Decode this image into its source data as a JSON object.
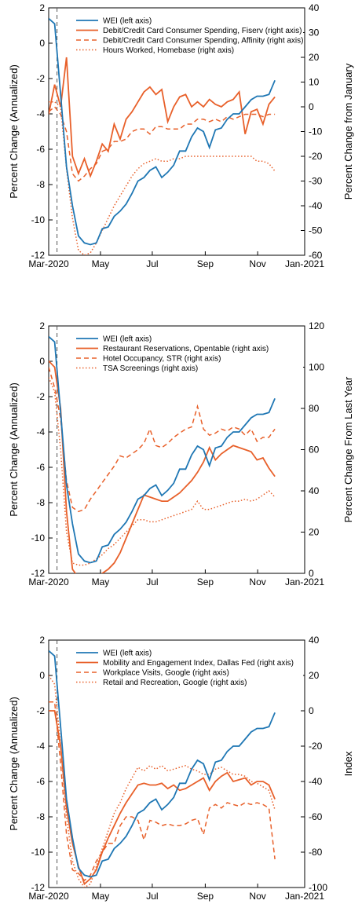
{
  "chart_data": [
    {
      "type": "line",
      "x_ticks": [
        "Mar-2020",
        "May",
        "Jul",
        "Sep",
        "Nov",
        "Jan-2021"
      ],
      "ylabel_left": "Percent Change (Annualized)",
      "ylabel_right": "Percent Change from January",
      "ylim_left": [
        -12,
        2
      ],
      "ylim_right": [
        -60,
        40
      ],
      "yticks_left": [
        -12,
        -10,
        -8,
        -6,
        -4,
        -2,
        0,
        2
      ],
      "yticks_right": [
        -60,
        -50,
        -40,
        -30,
        -20,
        -10,
        0,
        10,
        20,
        30,
        40
      ],
      "reference_line_week": 1.4,
      "legend_position": "top-right",
      "series": [
        {
          "name": "WEI (left axis)",
          "axis": "left",
          "color": "#1f77b4",
          "style": "solid",
          "values": [
            1.4,
            1.1,
            -2.9,
            -7.0,
            -9.2,
            -10.9,
            -11.3,
            -11.4,
            -11.3,
            -10.5,
            -10.4,
            -9.8,
            -9.5,
            -9.1,
            -8.5,
            -7.8,
            -7.6,
            -7.2,
            -7.0,
            -7.6,
            -7.3,
            -6.9,
            -6.1,
            -6.1,
            -5.3,
            -4.8,
            -5.0,
            -5.9,
            -4.9,
            -4.8,
            -4.3,
            -4.0,
            -4.0,
            -3.6,
            -3.2,
            -3.0,
            -3.0,
            -2.9,
            -2.1
          ]
        },
        {
          "name": "Debit/Credit Card Consumer Spending, Fiserv (right axis)",
          "axis": "right",
          "color": "#e8602a",
          "style": "solid",
          "values": [
            -3,
            9,
            0,
            20,
            -20,
            -27,
            -21,
            -28,
            -22,
            -15,
            -18,
            -7,
            -13,
            -5,
            -2,
            2,
            6,
            8,
            5,
            7,
            -6,
            0,
            4,
            5,
            0,
            2,
            0,
            3,
            1,
            0,
            2,
            3,
            6,
            -11,
            -2,
            -1,
            -7,
            1,
            4
          ]
        },
        {
          "name": "Debit/Credit Card Consumer Spending, Affinity (right axis)",
          "axis": "right",
          "color": "#e8602a",
          "style": "dashed",
          "values": [
            -2,
            0,
            -3,
            -10,
            -27,
            -30,
            -28,
            -25,
            -23,
            -18,
            -17,
            -14,
            -14,
            -13,
            -10,
            -9,
            -9,
            -11,
            -8,
            -8,
            -9,
            -9,
            -9,
            -7,
            -7,
            -5,
            -5,
            -6,
            -5,
            -6,
            -4,
            -5,
            -4,
            -3,
            -3,
            -3,
            -4,
            -3,
            -3
          ]
        },
        {
          "name": "Hours Worked, Homebase (right axis)",
          "axis": "right",
          "color": "#e8602a",
          "style": "dotted",
          "values": [
            2,
            2,
            0,
            -25,
            -45,
            -58,
            -60,
            -59,
            -55,
            -50,
            -45,
            -40,
            -36,
            -32,
            -28,
            -25,
            -23,
            -22,
            -21,
            -22,
            -22,
            -21,
            -21,
            -20,
            -20,
            -20,
            -20,
            -20,
            -20,
            -20,
            -20,
            -20,
            -20,
            -20,
            -20,
            -22,
            -22,
            -23,
            -26
          ]
        }
      ]
    },
    {
      "type": "line",
      "x_ticks": [
        "Mar-2020",
        "May",
        "Jul",
        "Sep",
        "Nov",
        "Jan-2021"
      ],
      "ylabel_left": "Percent Change (Annualized)",
      "ylabel_right": "Percent Change From Last Year",
      "ylim_left": [
        -12,
        2
      ],
      "ylim_right": [
        0,
        120
      ],
      "yticks_left": [
        -12,
        -10,
        -8,
        -6,
        -4,
        -2,
        0,
        2
      ],
      "yticks_right": [
        0,
        20,
        40,
        60,
        80,
        100,
        120
      ],
      "reference_line_week": 1.4,
      "legend_position": "top-right",
      "series": [
        {
          "name": "WEI (left axis)",
          "axis": "left",
          "color": "#1f77b4",
          "style": "solid",
          "values": [
            1.4,
            1.1,
            -2.9,
            -7.0,
            -9.2,
            -10.9,
            -11.3,
            -11.4,
            -11.3,
            -10.5,
            -10.4,
            -9.8,
            -9.5,
            -9.1,
            -8.5,
            -7.8,
            -7.6,
            -7.2,
            -7.0,
            -7.6,
            -7.3,
            -6.9,
            -6.1,
            -6.1,
            -5.3,
            -4.8,
            -5.0,
            -5.9,
            -4.9,
            -4.8,
            -4.3,
            -4.0,
            -4.0,
            -3.6,
            -3.2,
            -3.0,
            -3.0,
            -2.9,
            -2.1
          ]
        },
        {
          "name": "Restaurant Reservations, Opentable (right axis)",
          "axis": "right",
          "color": "#e8602a",
          "style": "solid",
          "values": [
            103,
            100,
            80,
            30,
            2,
            -2,
            -5,
            -5,
            -2,
            0,
            2,
            5,
            10,
            17,
            24,
            31,
            38,
            37,
            36,
            35,
            35,
            37,
            39,
            42,
            45,
            49,
            54,
            61,
            55,
            58,
            60,
            62,
            61,
            60,
            59,
            55,
            56,
            51,
            47
          ]
        },
        {
          "name": "Hotel Occupancy, STR (right axis)",
          "axis": "right",
          "color": "#e8602a",
          "style": "dashed",
          "values": [
            100,
            90,
            75,
            45,
            32,
            30,
            31,
            36,
            40,
            44,
            48,
            52,
            57,
            56,
            58,
            60,
            63,
            70,
            62,
            61,
            63,
            66,
            68,
            70,
            71,
            81,
            70,
            67,
            68,
            70,
            69,
            71,
            70,
            67,
            70,
            64,
            66,
            66,
            70
          ]
        },
        {
          "name": "TSA Screenings (right axis)",
          "axis": "right",
          "color": "#e8602a",
          "style": "dotted",
          "values": [
            95,
            88,
            60,
            20,
            5,
            4,
            4,
            5,
            7,
            9,
            12,
            14,
            17,
            20,
            23,
            26,
            26,
            25,
            25,
            26,
            27,
            28,
            29,
            30,
            31,
            35,
            31,
            31,
            32,
            33,
            34,
            35,
            35,
            36,
            35,
            36,
            38,
            40,
            37
          ]
        }
      ]
    },
    {
      "type": "line",
      "x_ticks": [
        "Mar-2020",
        "May",
        "Jul",
        "Sep",
        "Nov",
        "Jan-2021"
      ],
      "ylabel_left": "Percent Change (Annualized)",
      "ylabel_right": "Index",
      "ylim_left": [
        -12,
        2
      ],
      "ylim_right": [
        -100,
        40
      ],
      "yticks_left": [
        -12,
        -10,
        -8,
        -6,
        -4,
        -2,
        0,
        2
      ],
      "yticks_right": [
        -100,
        -80,
        -60,
        -40,
        -20,
        0,
        20,
        40
      ],
      "reference_line_week": 1.4,
      "legend_position": "top-right",
      "series": [
        {
          "name": "WEI (left axis)",
          "axis": "left",
          "color": "#1f77b4",
          "style": "solid",
          "values": [
            1.4,
            1.1,
            -2.9,
            -7.0,
            -9.2,
            -10.9,
            -11.3,
            -11.4,
            -11.3,
            -10.5,
            -10.4,
            -9.8,
            -9.5,
            -9.1,
            -8.5,
            -7.8,
            -7.6,
            -7.2,
            -7.0,
            -7.6,
            -7.3,
            -6.9,
            -6.1,
            -6.1,
            -5.3,
            -4.8,
            -5.0,
            -5.9,
            -4.9,
            -4.8,
            -4.3,
            -4.0,
            -4.0,
            -3.6,
            -3.2,
            -3.0,
            -3.0,
            -2.9,
            -2.1
          ]
        },
        {
          "name": "Mobility and Engagement Index, Dallas Fed (right axis)",
          "axis": "right",
          "color": "#e8602a",
          "style": "solid",
          "values": [
            0,
            0,
            -20,
            -55,
            -75,
            -88,
            -98,
            -95,
            -90,
            -80,
            -72,
            -65,
            -58,
            -52,
            -47,
            -42,
            -41,
            -42,
            -42,
            -41,
            -44,
            -42,
            -45,
            -44,
            -42,
            -40,
            -38,
            -45,
            -40,
            -37,
            -35,
            -40,
            -39,
            -38,
            -42,
            -40,
            -40,
            -42,
            -50
          ]
        },
        {
          "name": "Workplace Visits, Google (right axis)",
          "axis": "right",
          "color": "#e8602a",
          "style": "dashed",
          "values": [
            5,
            5,
            -30,
            -70,
            -90,
            -92,
            -96,
            -93,
            -85,
            -80,
            -75,
            -75,
            -65,
            -60,
            -60,
            -62,
            -73,
            -62,
            -63,
            -65,
            -64,
            -65,
            -65,
            -64,
            -62,
            -61,
            -70,
            -55,
            -53,
            -55,
            -52,
            -53,
            -54,
            -52,
            -53,
            -52,
            -53,
            -55,
            -84
          ]
        },
        {
          "name": "Retail and Recreation, Google (right axis)",
          "axis": "right",
          "color": "#e8602a",
          "style": "dotted",
          "values": [
            20,
            15,
            -20,
            -60,
            -85,
            -95,
            -100,
            -98,
            -88,
            -78,
            -68,
            -58,
            -52,
            -44,
            -38,
            -32,
            -34,
            -31,
            -33,
            -31,
            -34,
            -33,
            -32,
            -31,
            -33,
            -34,
            -36,
            -36,
            -33,
            -32,
            -34,
            -36,
            -36,
            -37,
            -40,
            -41,
            -43,
            -45,
            -56
          ]
        }
      ]
    }
  ]
}
